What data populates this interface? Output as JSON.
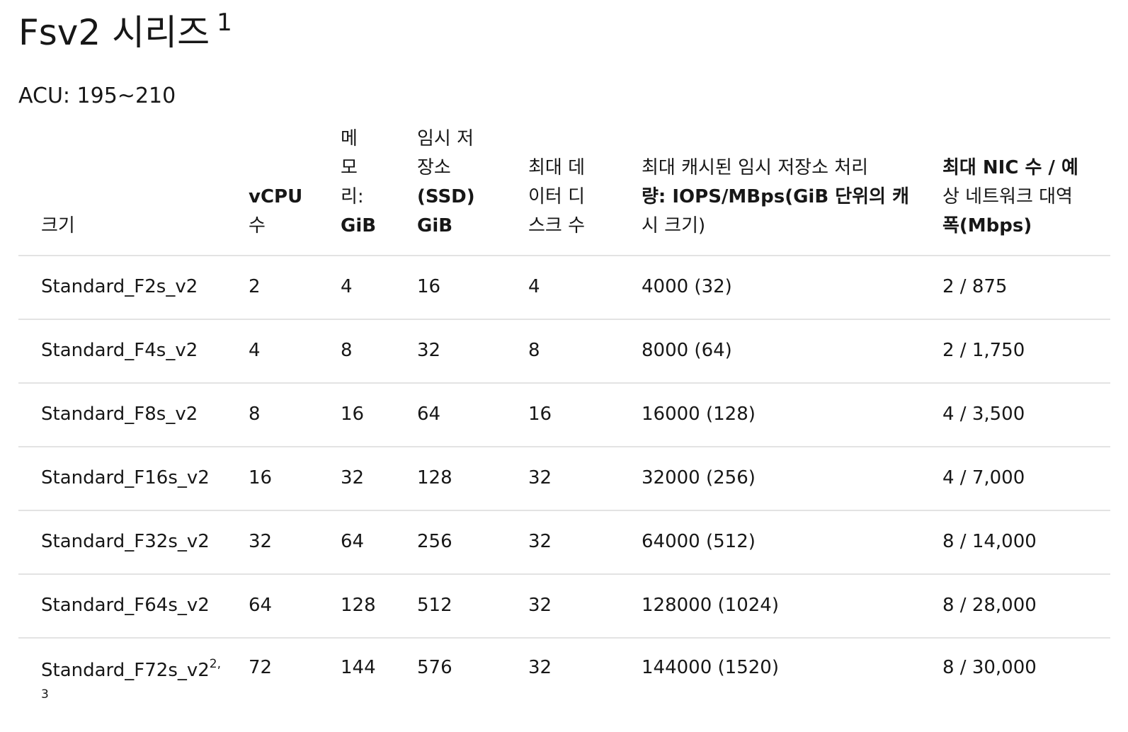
{
  "page": {
    "title": "Fsv2 시리즈",
    "title_sup": "1",
    "acu": "ACU: 195~210"
  },
  "table": {
    "headers": [
      {
        "lines": [
          {
            "t": "크기",
            "b": false
          }
        ]
      },
      {
        "lines": [
          {
            "t": "vCPU",
            "b": true
          },
          {
            "t": "수",
            "b": false
          }
        ]
      },
      {
        "lines": [
          {
            "t": "메",
            "b": false
          },
          {
            "t": "모",
            "b": false
          },
          {
            "t": "리:",
            "b": false
          },
          {
            "t": "GiB",
            "b": true
          }
        ]
      },
      {
        "lines": [
          {
            "t": "임시 저",
            "b": false
          },
          {
            "t": "장소",
            "b": false
          },
          {
            "t": "(SSD)",
            "b": true
          },
          {
            "t": "GiB",
            "b": true
          }
        ]
      },
      {
        "lines": [
          {
            "t": "최대 데",
            "b": false
          },
          {
            "t": "이터 디",
            "b": false
          },
          {
            "t": "스크 수",
            "b": false
          }
        ]
      },
      {
        "lines": [
          {
            "t": "최대 캐시된 임시 저장소 처리",
            "b": false
          },
          {
            "t": "량: IOPS/MBps(GiB 단위의 캐",
            "b": true
          },
          {
            "t": "시 크기)",
            "b": false
          }
        ]
      },
      {
        "lines": [
          {
            "t": "최대 NIC 수 / 예",
            "b": true
          },
          {
            "t": "상 네트워크 대역",
            "b": false
          },
          {
            "t": "폭(Mbps)",
            "b": true
          }
        ]
      }
    ],
    "rows": [
      {
        "size": "Standard_F2s_v2",
        "size_sup": "",
        "size_sup2": "",
        "vcpu": "2",
        "memory": "4",
        "temp": "16",
        "disks": "4",
        "iops": "4000 (32)",
        "nic": "2 / 875"
      },
      {
        "size": "Standard_F4s_v2",
        "size_sup": "",
        "size_sup2": "",
        "vcpu": "4",
        "memory": "8",
        "temp": "32",
        "disks": "8",
        "iops": "8000 (64)",
        "nic": "2 / 1,750"
      },
      {
        "size": "Standard_F8s_v2",
        "size_sup": "",
        "size_sup2": "",
        "vcpu": "8",
        "memory": "16",
        "temp": "64",
        "disks": "16",
        "iops": "16000 (128)",
        "nic": "4 / 3,500"
      },
      {
        "size": "Standard_F16s_v2",
        "size_sup": "",
        "size_sup2": "",
        "vcpu": "16",
        "memory": "32",
        "temp": "128",
        "disks": "32",
        "iops": "32000 (256)",
        "nic": "4 / 7,000"
      },
      {
        "size": "Standard_F32s_v2",
        "size_sup": "",
        "size_sup2": "",
        "vcpu": "32",
        "memory": "64",
        "temp": "256",
        "disks": "32",
        "iops": "64000 (512)",
        "nic": "8 / 14,000"
      },
      {
        "size": "Standard_F64s_v2",
        "size_sup": "",
        "size_sup2": "",
        "vcpu": "64",
        "memory": "128",
        "temp": "512",
        "disks": "32",
        "iops": "128000 (1024)",
        "nic": "8 / 28,000"
      },
      {
        "size": "Standard_F72s_v2",
        "size_sup": "2,",
        "size_sup2": "3",
        "vcpu": "72",
        "memory": "144",
        "temp": "576",
        "disks": "32",
        "iops": "144000 (1520)",
        "nic": "8 / 30,000"
      }
    ]
  }
}
